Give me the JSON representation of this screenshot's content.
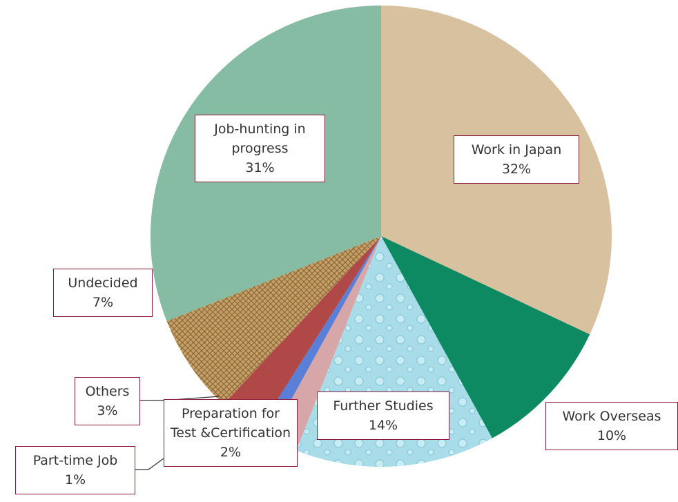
{
  "chart_data": {
    "type": "pie",
    "categories": [
      "Work in Japan",
      "Work Overseas",
      "Further Studies",
      "Preparation for Test &Certification",
      "Part-time Job",
      "Others",
      "Undecided",
      "Job-hunting in progress"
    ],
    "values": [
      32,
      10,
      14,
      2,
      1,
      3,
      7,
      31
    ],
    "value_labels": [
      "32%",
      "10%",
      "14%",
      "2%",
      "1%",
      "3%",
      "7%",
      "31%"
    ],
    "colors": [
      "#d8c19e",
      "#0e8a63",
      "#a8dce8",
      "#d6a6a8",
      "#5a7fd8",
      "#b04848",
      "#c6a066",
      "#86bba4"
    ]
  }
}
